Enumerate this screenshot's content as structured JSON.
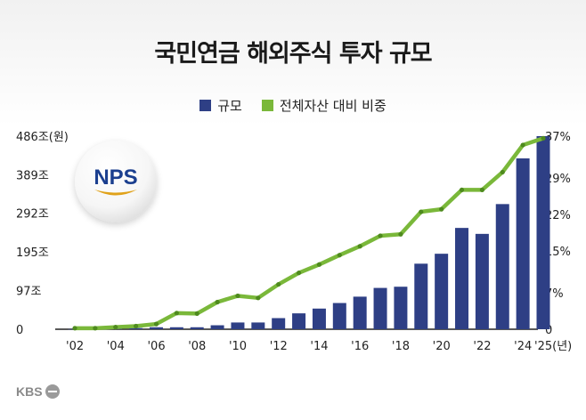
{
  "title": "국민연금 해외주식 투자 규모",
  "legend": {
    "bar_label": "규모",
    "line_label": "전체자산 대비 비중"
  },
  "logo_text": "NPS",
  "source_text": "KBS",
  "chart_data": {
    "type": "bar+line",
    "title": "국민연금 해외주식 투자 규모",
    "x": [
      "'02",
      "'03",
      "'04",
      "'05",
      "'06",
      "'07",
      "'08",
      "'09",
      "'10",
      "'11",
      "'12",
      "'13",
      "'14",
      "'15",
      "'16",
      "'17",
      "'18",
      "'19",
      "'20",
      "'21",
      "'22",
      "'23",
      "'24",
      "'25"
    ],
    "x_tick_labels": [
      "'02",
      "'04",
      "'06",
      "'08",
      "'10",
      "'12",
      "'14",
      "'16",
      "'18",
      "'20",
      "'22",
      "'24",
      "'25(년)"
    ],
    "series": [
      {
        "name": "규모",
        "kind": "bar",
        "axis": "left",
        "values": [
          0.5,
          1,
          1.5,
          3,
          5,
          5,
          5,
          10,
          17,
          17,
          28,
          40,
          52,
          66,
          82,
          104,
          107,
          165,
          190,
          255,
          240,
          315,
          430,
          486
        ]
      },
      {
        "name": "전체자산 대비 비중",
        "kind": "line",
        "axis": "right",
        "values": [
          0.2,
          0.2,
          0.4,
          0.6,
          1.0,
          3.1,
          3.0,
          5.2,
          6.4,
          6.0,
          8.6,
          10.8,
          12.4,
          14.2,
          15.9,
          17.9,
          18.2,
          22.5,
          23.0,
          26.7,
          26.7,
          30.1,
          35.3,
          36.6
        ]
      }
    ],
    "y_left": {
      "ticks": [
        "0",
        "97조",
        "195조",
        "292조",
        "389조",
        "486조(원)"
      ],
      "tick_values": [
        0,
        97,
        195,
        292,
        389,
        486
      ],
      "range": [
        0,
        486
      ]
    },
    "y_right": {
      "ticks": [
        "0",
        "7%",
        "15%",
        "22%",
        "29%",
        "37%"
      ],
      "tick_values": [
        0,
        7,
        15,
        22,
        29,
        37
      ],
      "range": [
        0,
        37
      ]
    },
    "colors": {
      "bar": "#2e3f85",
      "line": "#7ab83a",
      "axis": "#222222"
    }
  }
}
